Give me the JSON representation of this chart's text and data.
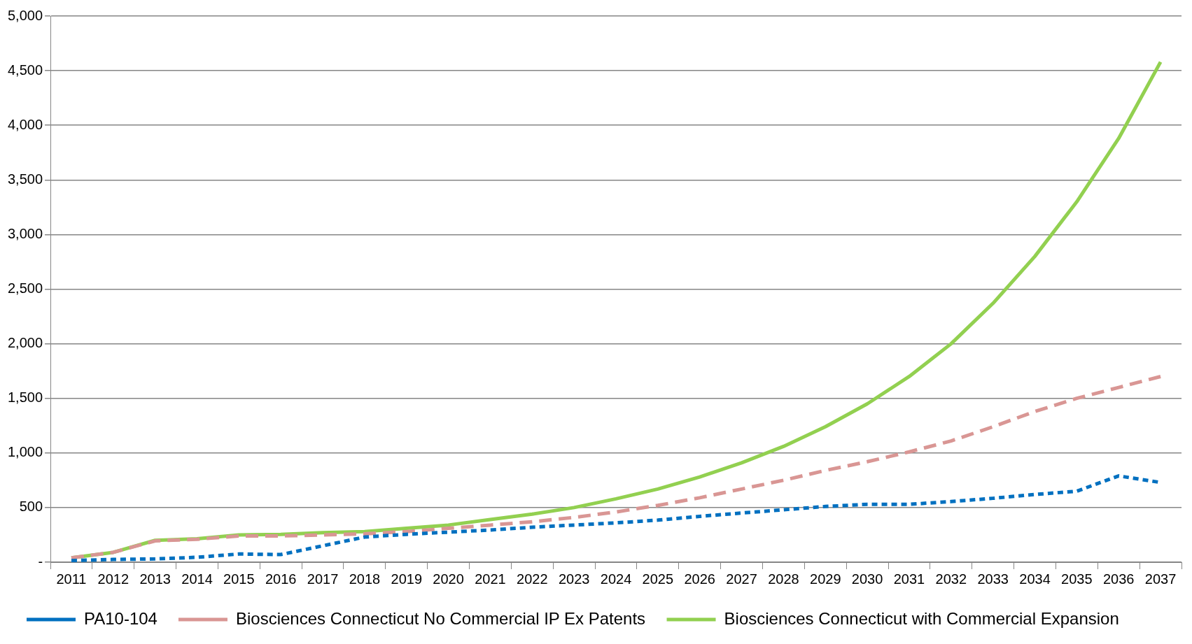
{
  "chart_data": {
    "type": "line",
    "categories": [
      "2011",
      "2012",
      "2013",
      "2014",
      "2015",
      "2016",
      "2017",
      "2018",
      "2019",
      "2020",
      "2021",
      "2022",
      "2023",
      "2024",
      "2025",
      "2026",
      "2027",
      "2028",
      "2029",
      "2030",
      "2031",
      "2032",
      "2033",
      "2034",
      "2035",
      "2036",
      "2037"
    ],
    "series": [
      {
        "name": "PA10-104",
        "color": "#0070c0",
        "line_style": "dotted",
        "values": [
          15,
          25,
          30,
          45,
          75,
          70,
          150,
          230,
          255,
          275,
          295,
          320,
          340,
          360,
          385,
          420,
          450,
          480,
          510,
          530,
          530,
          555,
          585,
          620,
          650,
          790,
          730
        ]
      },
      {
        "name": "Biosciences Connecticut No Commercial IP Ex Patents",
        "color": "#d99694",
        "line_style": "dashed",
        "values": [
          40,
          90,
          195,
          210,
          240,
          240,
          250,
          260,
          280,
          310,
          340,
          370,
          410,
          460,
          520,
          590,
          670,
          750,
          840,
          920,
          1010,
          1110,
          1240,
          1380,
          1500,
          1600,
          1700
        ]
      },
      {
        "name": "Biosciences Connecticut with Commercial Expansion",
        "color": "#92d050",
        "line_style": "solid",
        "values": [
          40,
          90,
          200,
          215,
          250,
          255,
          270,
          280,
          310,
          340,
          390,
          440,
          500,
          580,
          670,
          780,
          910,
          1060,
          1240,
          1450,
          1700,
          2000,
          2370,
          2800,
          3300,
          3880,
          4580
        ]
      }
    ],
    "ylim": [
      0,
      5000
    ],
    "yticks": [
      {
        "value": 0,
        "label": "-"
      },
      {
        "value": 500,
        "label": "500"
      },
      {
        "value": 1000,
        "label": "1,000"
      },
      {
        "value": 1500,
        "label": "1,500"
      },
      {
        "value": 2000,
        "label": "2,000"
      },
      {
        "value": 2500,
        "label": "2,500"
      },
      {
        "value": 3000,
        "label": "3,000"
      },
      {
        "value": 3500,
        "label": "3,500"
      },
      {
        "value": 4000,
        "label": "4,000"
      },
      {
        "value": 4500,
        "label": "4,500"
      },
      {
        "value": 5000,
        "label": "5,000"
      }
    ],
    "grid": "y",
    "legend": "bottom",
    "marker": "none"
  }
}
